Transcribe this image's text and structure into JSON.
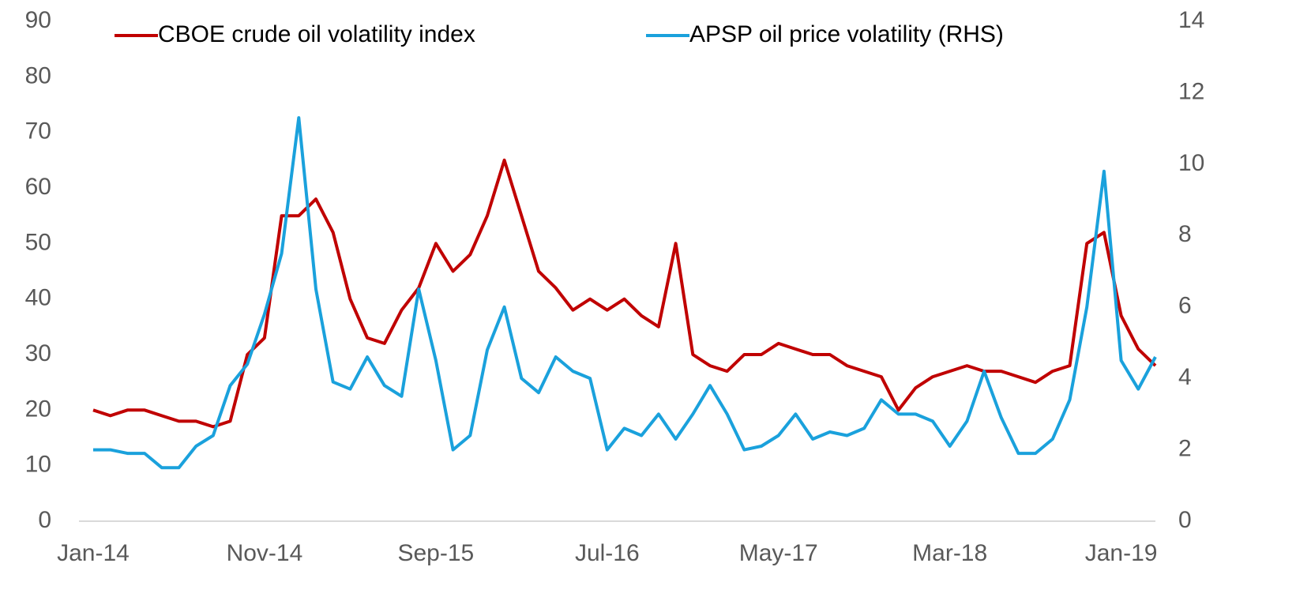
{
  "chart_data": {
    "type": "line",
    "categories": [
      "Jan-14",
      null,
      null,
      null,
      null,
      null,
      null,
      null,
      null,
      null,
      "Nov-14",
      null,
      null,
      null,
      null,
      null,
      null,
      null,
      null,
      null,
      "Sep-15",
      null,
      null,
      null,
      null,
      null,
      null,
      null,
      null,
      null,
      "Jul-16",
      null,
      null,
      null,
      null,
      null,
      null,
      null,
      null,
      null,
      "May-17",
      null,
      null,
      null,
      null,
      null,
      null,
      null,
      null,
      null,
      "Mar-18",
      null,
      null,
      null,
      null,
      null,
      null,
      null,
      null,
      null,
      "Jan-19",
      null,
      null
    ],
    "series": [
      {
        "name": "CBOE crude oil volatility index",
        "color": "#c00000",
        "axis": "y",
        "values": [
          20,
          19,
          20,
          20,
          19,
          18,
          18,
          17,
          18,
          30,
          33,
          55,
          55,
          58,
          52,
          40,
          33,
          32,
          38,
          42,
          50,
          45,
          48,
          55,
          65,
          55,
          45,
          42,
          38,
          40,
          38,
          40,
          37,
          35,
          50,
          30,
          28,
          27,
          30,
          30,
          32,
          31,
          30,
          30,
          28,
          27,
          26,
          20,
          24,
          26,
          27,
          28,
          27,
          27,
          26,
          25,
          27,
          28,
          50,
          52,
          37,
          31,
          28
        ]
      },
      {
        "name": "APSP oil price volatility (RHS)",
        "color": "#1aa1dc",
        "axis": "y2",
        "values": [
          2.0,
          2.0,
          1.9,
          1.9,
          1.5,
          1.5,
          2.1,
          2.4,
          3.8,
          4.4,
          5.8,
          7.5,
          11.3,
          6.5,
          3.9,
          3.7,
          4.6,
          3.8,
          3.5,
          6.5,
          4.5,
          2.0,
          2.4,
          4.8,
          6.0,
          4.0,
          3.6,
          4.6,
          4.2,
          4.0,
          2.0,
          2.6,
          2.4,
          3.0,
          2.3,
          3.0,
          3.8,
          3.0,
          2.0,
          2.1,
          2.4,
          3.0,
          2.3,
          2.5,
          2.4,
          2.6,
          3.4,
          3.0,
          3.0,
          2.8,
          2.1,
          2.8,
          4.2,
          2.9,
          1.9,
          1.9,
          2.3,
          3.4,
          6.0,
          9.8,
          4.5,
          3.7,
          4.6
        ]
      }
    ],
    "ylim": [
      0,
      90
    ],
    "yticks": [
      0,
      10,
      20,
      30,
      40,
      50,
      60,
      70,
      80,
      90
    ],
    "y2lim": [
      0,
      14
    ],
    "y2ticks": [
      0,
      2,
      4,
      6,
      8,
      10,
      12,
      14
    ],
    "grid": false,
    "legend": "top"
  }
}
